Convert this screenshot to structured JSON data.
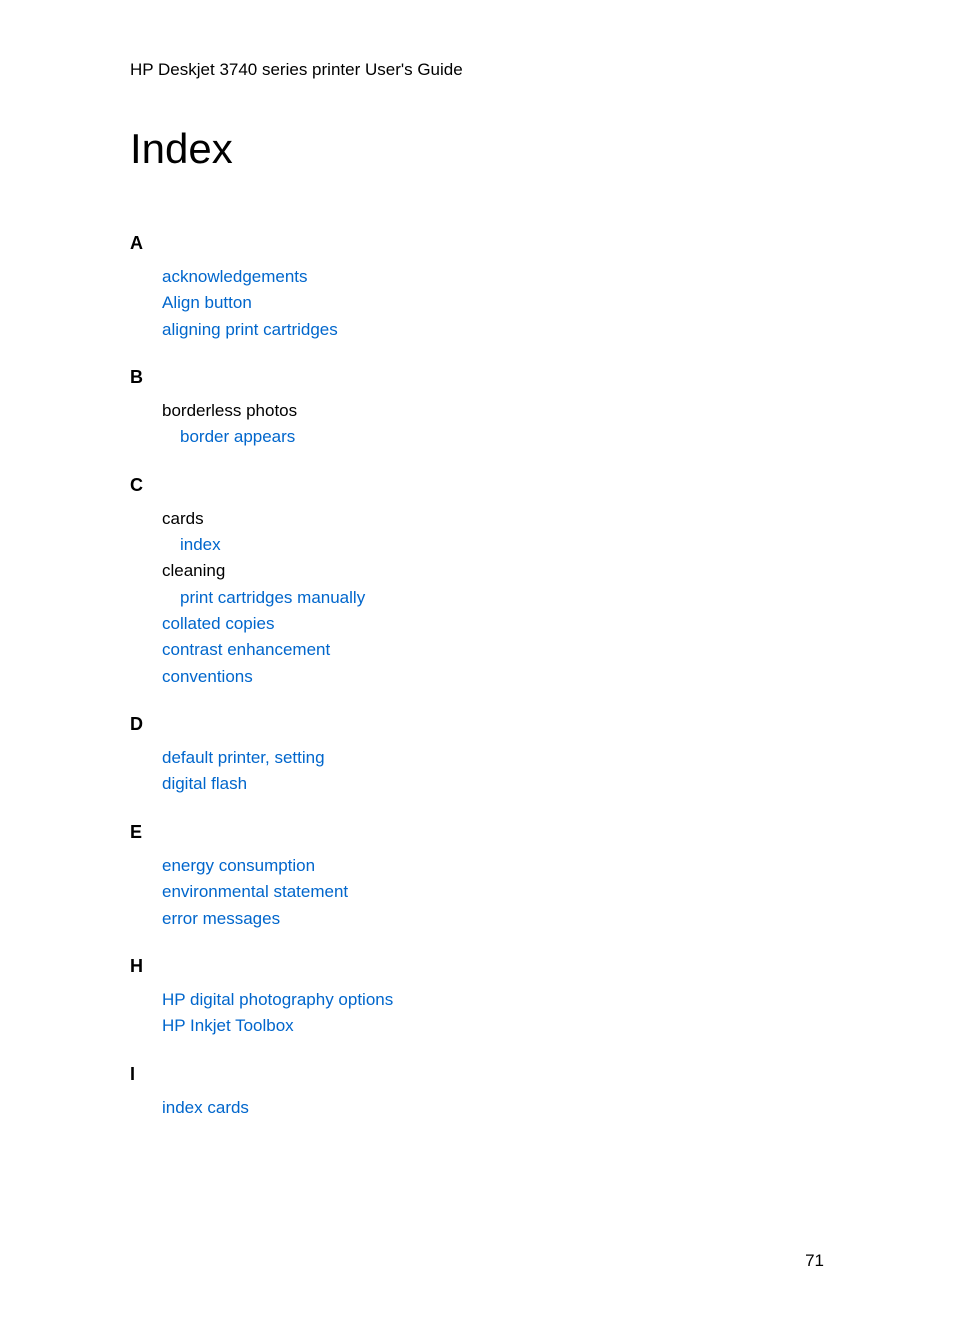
{
  "header": {
    "title": "HP Deskjet 3740 series printer User's Guide"
  },
  "pageTitle": "Index",
  "sections": [
    {
      "letter": "A",
      "entries": [
        {
          "text": "acknowledgements",
          "isLink": true,
          "indent": 0
        },
        {
          "text": "Align button",
          "isLink": true,
          "indent": 0
        },
        {
          "text": "aligning print cartridges",
          "isLink": true,
          "indent": 0
        }
      ]
    },
    {
      "letter": "B",
      "entries": [
        {
          "text": "borderless photos",
          "isLink": false,
          "indent": 0
        },
        {
          "text": "border appears",
          "isLink": true,
          "indent": 1
        }
      ]
    },
    {
      "letter": "C",
      "entries": [
        {
          "text": "cards",
          "isLink": false,
          "indent": 0
        },
        {
          "text": "index",
          "isLink": true,
          "indent": 1
        },
        {
          "text": "cleaning",
          "isLink": false,
          "indent": 0
        },
        {
          "text": "print cartridges manually",
          "isLink": true,
          "indent": 1
        },
        {
          "text": "collated copies",
          "isLink": true,
          "indent": 0
        },
        {
          "text": "contrast enhancement",
          "isLink": true,
          "indent": 0
        },
        {
          "text": "conventions",
          "isLink": true,
          "indent": 0
        }
      ]
    },
    {
      "letter": "D",
      "entries": [
        {
          "text": "default printer, setting",
          "isLink": true,
          "indent": 0
        },
        {
          "text": "digital flash",
          "isLink": true,
          "indent": 0
        }
      ]
    },
    {
      "letter": "E",
      "entries": [
        {
          "text": "energy consumption",
          "isLink": true,
          "indent": 0
        },
        {
          "text": "environmental statement",
          "isLink": true,
          "indent": 0
        },
        {
          "text": "error messages",
          "isLink": true,
          "indent": 0
        }
      ]
    },
    {
      "letter": "H",
      "entries": [
        {
          "text": "HP digital photography options",
          "isLink": true,
          "indent": 0
        },
        {
          "text": "HP Inkjet Toolbox",
          "isLink": true,
          "indent": 0
        }
      ]
    },
    {
      "letter": "I",
      "entries": [
        {
          "text": "index cards",
          "isLink": true,
          "indent": 0
        }
      ]
    }
  ],
  "pageNumber": "71",
  "colors": {
    "link": "#0066cc",
    "text": "#000000",
    "background": "#ffffff"
  }
}
